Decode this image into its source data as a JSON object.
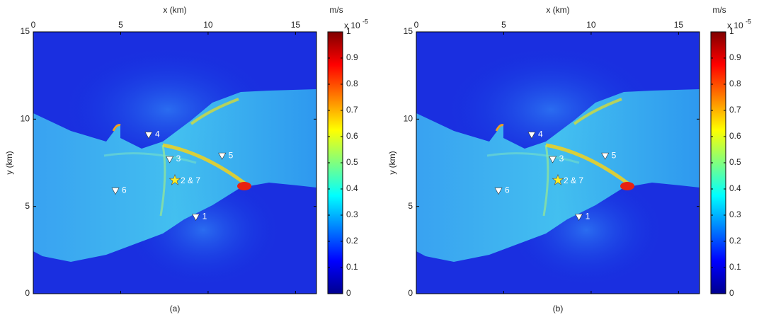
{
  "chart_data": [
    {
      "type": "scatter",
      "caption": "(a)",
      "xlabel": "x (km)",
      "ylabel": "y (km)",
      "xlim": [
        0,
        16.2
      ],
      "ylim": [
        0,
        15
      ],
      "xticks": [
        0,
        5,
        10,
        15
      ],
      "yticks": [
        0,
        5,
        10,
        15
      ],
      "stations": {
        "x": [
          9.3,
          7.8,
          6.6,
          10.8,
          4.7
        ],
        "y": [
          4.4,
          7.7,
          9.1,
          7.9,
          5.9
        ],
        "labels": [
          "1",
          "3",
          "4",
          "5",
          "6"
        ]
      },
      "source": {
        "x": 8.1,
        "y": 6.5,
        "label": "2 & 7"
      },
      "colorbar": {
        "unit": "m/s",
        "multiplier": "x 10",
        "exponent": "-5",
        "clim": [
          0,
          1
        ],
        "ticks": [
          0,
          0.1,
          0.2,
          0.3,
          0.4,
          0.5,
          0.6,
          0.7,
          0.8,
          0.9,
          1
        ]
      }
    },
    {
      "type": "scatter",
      "caption": "(b)",
      "xlabel": "x (km)",
      "ylabel": "y (km)",
      "xlim": [
        0,
        16.2
      ],
      "ylim": [
        0,
        15
      ],
      "xticks": [
        0,
        5,
        10,
        15
      ],
      "yticks": [
        0,
        5,
        10,
        15
      ],
      "stations": {
        "x": [
          9.3,
          7.8,
          6.6,
          10.8,
          4.7
        ],
        "y": [
          4.4,
          7.7,
          9.1,
          7.9,
          5.9
        ],
        "labels": [
          "1",
          "3",
          "4",
          "5",
          "6"
        ]
      },
      "source": {
        "x": 8.1,
        "y": 6.5,
        "label": "2 & 7"
      },
      "colorbar": {
        "unit": "m/s",
        "multiplier": "x 10",
        "exponent": "-5",
        "clim": [
          0,
          1
        ],
        "ticks": [
          0,
          0.1,
          0.2,
          0.3,
          0.4,
          0.5,
          0.6,
          0.7,
          0.8,
          0.9,
          1
        ]
      }
    }
  ]
}
